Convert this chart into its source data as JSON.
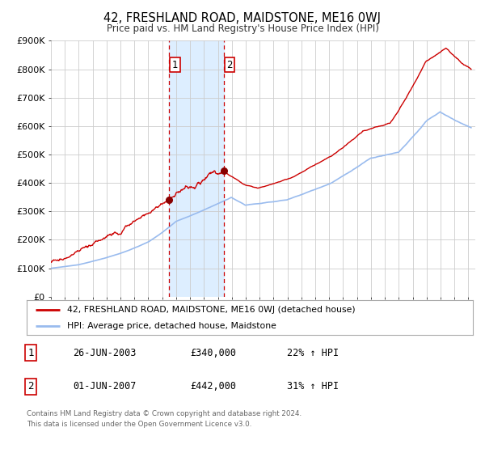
{
  "title": "42, FRESHLAND ROAD, MAIDSTONE, ME16 0WJ",
  "subtitle": "Price paid vs. HM Land Registry's House Price Index (HPI)",
  "ylim": [
    0,
    900000
  ],
  "yticks": [
    0,
    100000,
    200000,
    300000,
    400000,
    500000,
    600000,
    700000,
    800000,
    900000
  ],
  "ytick_labels": [
    "£0",
    "£100K",
    "£200K",
    "£300K",
    "£400K",
    "£500K",
    "£600K",
    "£700K",
    "£800K",
    "£900K"
  ],
  "xlim_start": 1995.0,
  "xlim_end": 2025.5,
  "xticks": [
    1995,
    1996,
    1997,
    1998,
    1999,
    2000,
    2001,
    2002,
    2003,
    2004,
    2005,
    2006,
    2007,
    2008,
    2009,
    2010,
    2011,
    2012,
    2013,
    2014,
    2015,
    2016,
    2017,
    2018,
    2019,
    2020,
    2021,
    2022,
    2023,
    2024,
    2025
  ],
  "grid_color": "#cccccc",
  "background_color": "#ffffff",
  "line1_color": "#cc0000",
  "line2_color": "#99bbee",
  "marker_color": "#880000",
  "transaction1_x": 2003.487,
  "transaction1_y": 340000,
  "transaction2_x": 2007.415,
  "transaction2_y": 442000,
  "shade_color": "#ddeeff",
  "legend_line1": "42, FRESHLAND ROAD, MAIDSTONE, ME16 0WJ (detached house)",
  "legend_line2": "HPI: Average price, detached house, Maidstone",
  "table_row1_num": "1",
  "table_row1_date": "26-JUN-2003",
  "table_row1_price": "£340,000",
  "table_row1_hpi": "22% ↑ HPI",
  "table_row2_num": "2",
  "table_row2_date": "01-JUN-2007",
  "table_row2_price": "£442,000",
  "table_row2_hpi": "31% ↑ HPI",
  "footer": "Contains HM Land Registry data © Crown copyright and database right 2024.\nThis data is licensed under the Open Government Licence v3.0."
}
